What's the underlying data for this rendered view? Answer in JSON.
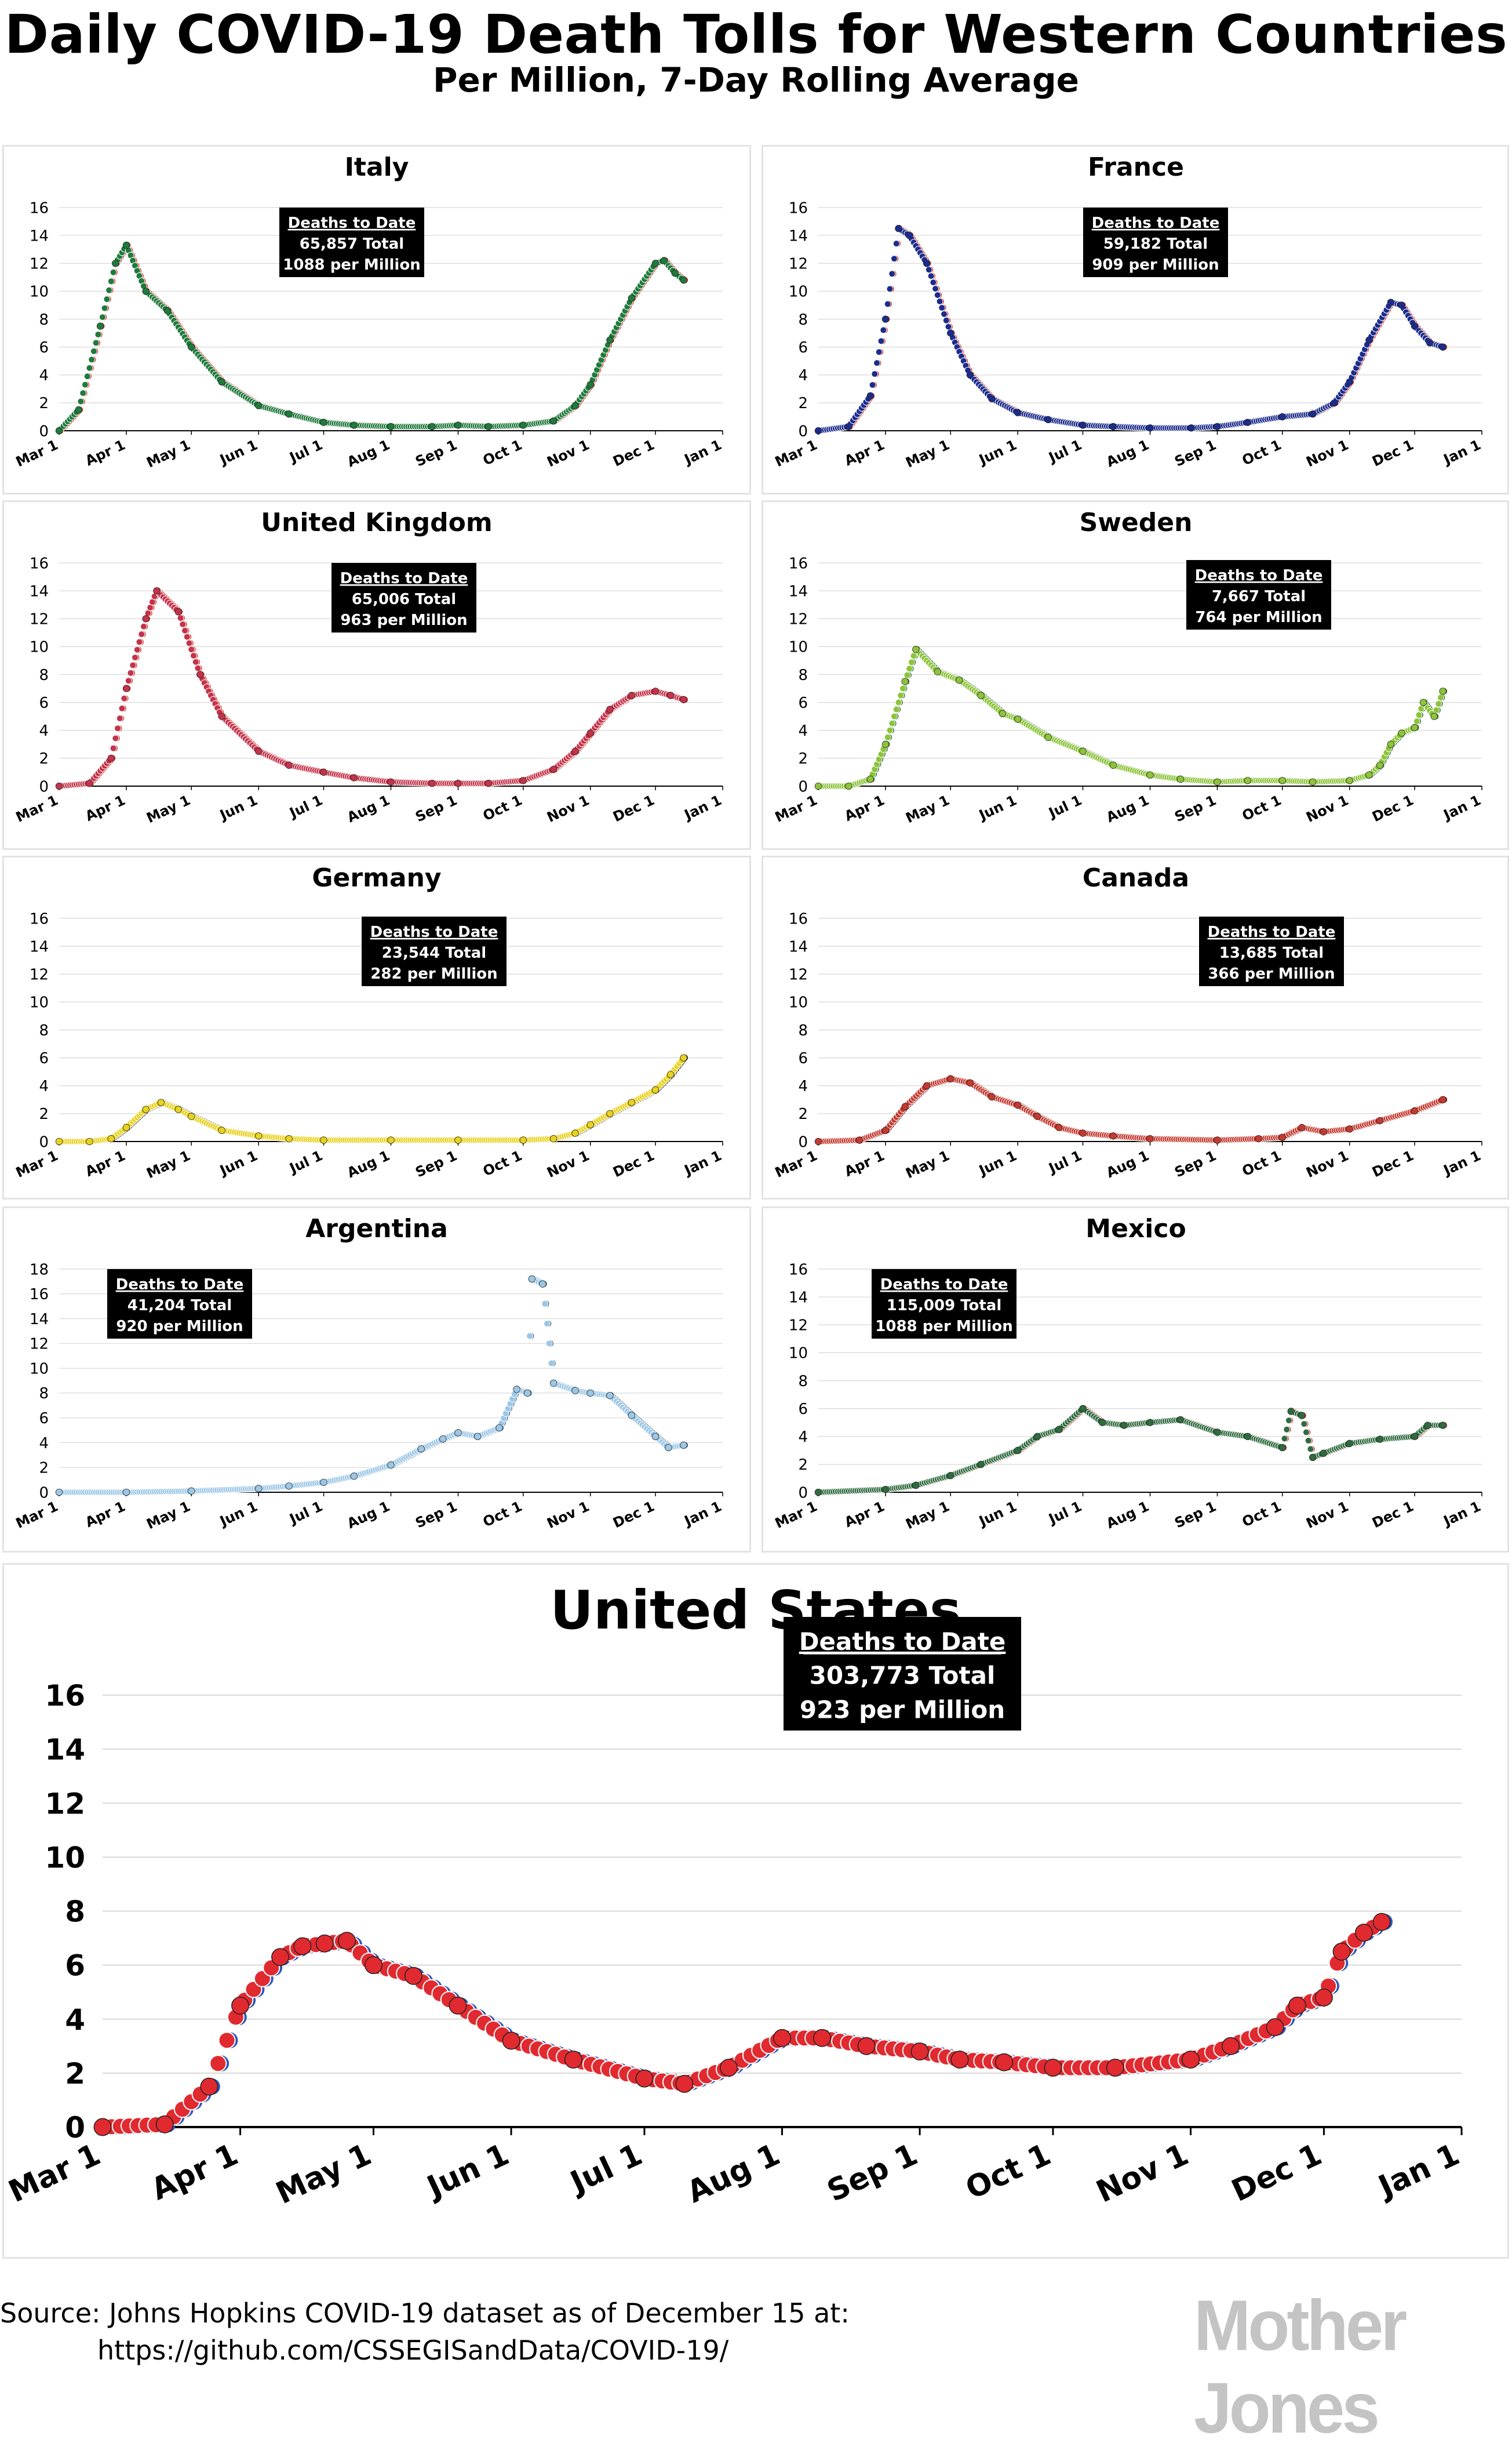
{
  "title": "Daily COVID-19 Death Tolls for Western Countries",
  "subtitle": "Per Million, 7-Day Rolling Average",
  "source": {
    "line1": "Source: Johns Hopkins COVID-19 dataset as of December 15 at:",
    "line2": "https://github.com/CSSEGISandData/COVID-19/"
  },
  "logo": "Mother Jones",
  "month_labels": [
    "Mar 1",
    "Apr 1",
    "May 1",
    "Jun 1",
    "Jul 1",
    "Aug 1",
    "Sep 1",
    "Oct 1",
    "Nov 1",
    "Dec 1",
    "Jan 1"
  ],
  "box_heading": "Deaths to Date",
  "chart_data": [
    {
      "type": "scatter",
      "title": "Italy",
      "x_type": "date",
      "xlim": [
        "Mar 1",
        "Jan 1"
      ],
      "ylim": [
        0,
        16
      ],
      "y_ticks": [
        0,
        2,
        4,
        6,
        8,
        10,
        12,
        14,
        16
      ],
      "grid": true,
      "legend": "none",
      "colors": {
        "primary": "#1f7a3c",
        "secondary": "#d23a30"
      },
      "deaths_box": {
        "heading": "Deaths to Date",
        "total": "65,857 Total",
        "per_million": "1088 per Million"
      },
      "series": [
        {
          "x": [
            "Mar 1",
            "Mar 10",
            "Mar 20",
            "Mar 27",
            "Apr 1",
            "Apr 10",
            "Apr 20",
            "May 1",
            "May 15",
            "Jun 1",
            "Jun 15",
            "Jul 1",
            "Jul 15",
            "Aug 1",
            "Aug 20",
            "Sep 1",
            "Sep 15",
            "Oct 1",
            "Oct 15",
            "Oct 25",
            "Nov 1",
            "Nov 10",
            "Nov 20",
            "Dec 1",
            "Dec 5",
            "Dec 10",
            "Dec 14"
          ],
          "values": [
            0,
            1.5,
            7.5,
            12,
            13.3,
            10,
            8.6,
            6,
            3.5,
            1.8,
            1.2,
            0.6,
            0.4,
            0.3,
            0.3,
            0.4,
            0.3,
            0.4,
            0.7,
            1.8,
            3.3,
            6.5,
            9.5,
            12,
            12.2,
            11.3,
            10.8
          ]
        }
      ]
    },
    {
      "type": "scatter",
      "title": "France",
      "x_type": "date",
      "xlim": [
        "Mar 1",
        "Jan 1"
      ],
      "ylim": [
        0,
        16
      ],
      "y_ticks": [
        0,
        2,
        4,
        6,
        8,
        10,
        12,
        14,
        16
      ],
      "grid": true,
      "legend": "none",
      "colors": {
        "primary": "#1c2c8c",
        "secondary": "#d23a30"
      },
      "deaths_box": {
        "heading": "Deaths to Date",
        "total": "59,182 Total",
        "per_million": "909 per Million"
      },
      "series": [
        {
          "x": [
            "Mar 1",
            "Mar 15",
            "Mar 25",
            "Apr 1",
            "Apr 7",
            "Apr 12",
            "Apr 20",
            "May 1",
            "May 10",
            "May 20",
            "Jun 1",
            "Jun 15",
            "Jul 1",
            "Jul 15",
            "Aug 1",
            "Aug 20",
            "Sep 1",
            "Sep 15",
            "Oct 1",
            "Oct 15",
            "Oct 25",
            "Nov 1",
            "Nov 10",
            "Nov 20",
            "Nov 25",
            "Dec 1",
            "Dec 8",
            "Dec 14"
          ],
          "values": [
            0,
            0.3,
            2.5,
            8,
            14.5,
            14,
            12,
            7,
            4,
            2.3,
            1.3,
            0.8,
            0.4,
            0.3,
            0.2,
            0.2,
            0.3,
            0.6,
            1,
            1.2,
            2,
            3.5,
            6.5,
            9.2,
            9,
            7.5,
            6.3,
            6
          ]
        }
      ]
    },
    {
      "type": "scatter",
      "title": "United Kingdom",
      "x_type": "date",
      "xlim": [
        "Mar 1",
        "Jan 1"
      ],
      "ylim": [
        0,
        16
      ],
      "y_ticks": [
        0,
        2,
        4,
        6,
        8,
        10,
        12,
        14,
        16
      ],
      "grid": true,
      "legend": "none",
      "colors": {
        "primary": "#c4334a",
        "secondary": "#d23a30"
      },
      "deaths_box": {
        "heading": "Deaths to Date",
        "total": "65,006 Total",
        "per_million": "963 per Million"
      },
      "series": [
        {
          "x": [
            "Mar 1",
            "Mar 15",
            "Mar 25",
            "Apr 1",
            "Apr 10",
            "Apr 15",
            "Apr 25",
            "May 5",
            "May 15",
            "Jun 1",
            "Jun 15",
            "Jul 1",
            "Jul 15",
            "Aug 1",
            "Aug 20",
            "Sep 1",
            "Sep 15",
            "Oct 1",
            "Oct 15",
            "Oct 25",
            "Nov 1",
            "Nov 10",
            "Nov 20",
            "Dec 1",
            "Dec 8",
            "Dec 14"
          ],
          "values": [
            0,
            0.2,
            2,
            7,
            12,
            14,
            12.5,
            8,
            5,
            2.5,
            1.5,
            1,
            0.6,
            0.3,
            0.2,
            0.2,
            0.2,
            0.4,
            1.2,
            2.5,
            3.8,
            5.5,
            6.5,
            6.8,
            6.5,
            6.2
          ]
        }
      ]
    },
    {
      "type": "scatter",
      "title": "Sweden",
      "x_type": "date",
      "xlim": [
        "Mar 1",
        "Jan 1"
      ],
      "ylim": [
        0,
        16
      ],
      "y_ticks": [
        0,
        2,
        4,
        6,
        8,
        10,
        12,
        14,
        16
      ],
      "grid": true,
      "legend": "none",
      "colors": {
        "primary": "#8cc43a",
        "secondary": "#2e6b2e"
      },
      "deaths_box": {
        "heading": "Deaths to Date",
        "total": "7,667 Total",
        "per_million": "764 per Million"
      },
      "series": [
        {
          "x": [
            "Mar 1",
            "Mar 15",
            "Mar 25",
            "Apr 1",
            "Apr 10",
            "Apr 15",
            "Apr 25",
            "May 5",
            "May 15",
            "May 25",
            "Jun 1",
            "Jun 15",
            "Jul 1",
            "Jul 15",
            "Aug 1",
            "Aug 15",
            "Sep 1",
            "Sep 15",
            "Oct 1",
            "Oct 15",
            "Nov 1",
            "Nov 10",
            "Nov 15",
            "Nov 20",
            "Nov 25",
            "Dec 1",
            "Dec 5",
            "Dec 10",
            "Dec 14"
          ],
          "values": [
            0,
            0,
            0.5,
            3,
            7.5,
            9.8,
            8.2,
            7.6,
            6.5,
            5.2,
            4.8,
            3.5,
            2.5,
            1.5,
            0.8,
            0.5,
            0.3,
            0.4,
            0.4,
            0.3,
            0.4,
            0.8,
            1.5,
            3,
            3.8,
            4.2,
            6,
            5,
            6.8
          ]
        }
      ]
    },
    {
      "type": "scatter",
      "title": "Germany",
      "x_type": "date",
      "xlim": [
        "Mar 1",
        "Jan 1"
      ],
      "ylim": [
        0,
        16
      ],
      "y_ticks": [
        0,
        2,
        4,
        6,
        8,
        10,
        12,
        14,
        16
      ],
      "grid": true,
      "legend": "none",
      "colors": {
        "primary": "#e8d21f",
        "secondary": "#333333"
      },
      "deaths_box": {
        "heading": "Deaths to Date",
        "total": "23,544 Total",
        "per_million": "282 per Million"
      },
      "series": [
        {
          "x": [
            "Mar 1",
            "Mar 15",
            "Mar 25",
            "Apr 1",
            "Apr 10",
            "Apr 17",
            "Apr 25",
            "May 1",
            "May 15",
            "Jun 1",
            "Jun 15",
            "Jul 1",
            "Aug 1",
            "Sep 1",
            "Oct 1",
            "Oct 15",
            "Oct 25",
            "Nov 1",
            "Nov 10",
            "Nov 20",
            "Dec 1",
            "Dec 8",
            "Dec 14"
          ],
          "values": [
            0,
            0,
            0.2,
            1,
            2.3,
            2.8,
            2.3,
            1.8,
            0.8,
            0.4,
            0.2,
            0.1,
            0.1,
            0.1,
            0.1,
            0.2,
            0.6,
            1.2,
            2,
            2.8,
            3.7,
            4.8,
            6
          ]
        }
      ]
    },
    {
      "type": "scatter",
      "title": "Canada",
      "x_type": "date",
      "xlim": [
        "Mar 1",
        "Jan 1"
      ],
      "ylim": [
        0,
        16
      ],
      "y_ticks": [
        0,
        2,
        4,
        6,
        8,
        10,
        12,
        14,
        16
      ],
      "grid": true,
      "legend": "none",
      "colors": {
        "primary": "#c43a30",
        "secondary": "#7a1f1a"
      },
      "deaths_box": {
        "heading": "Deaths to Date",
        "total": "13,685 Total",
        "per_million": "366 per Million"
      },
      "series": [
        {
          "x": [
            "Mar 1",
            "Mar 20",
            "Apr 1",
            "Apr 10",
            "Apr 20",
            "May 1",
            "May 10",
            "May 20",
            "Jun 1",
            "Jun 10",
            "Jun 20",
            "Jul 1",
            "Jul 15",
            "Aug 1",
            "Sep 1",
            "Sep 20",
            "Oct 1",
            "Oct 10",
            "Oct 20",
            "Nov 1",
            "Nov 15",
            "Dec 1",
            "Dec 14"
          ],
          "values": [
            0,
            0.1,
            0.8,
            2.5,
            4,
            4.5,
            4.2,
            3.2,
            2.6,
            1.8,
            1,
            0.6,
            0.4,
            0.2,
            0.1,
            0.2,
            0.3,
            1,
            0.7,
            0.9,
            1.5,
            2.2,
            3
          ]
        }
      ]
    },
    {
      "type": "scatter",
      "title": "Argentina",
      "x_type": "date",
      "xlim": [
        "Mar 1",
        "Jan 1"
      ],
      "ylim": [
        0,
        18
      ],
      "y_ticks": [
        0,
        2,
        4,
        6,
        8,
        10,
        12,
        14,
        16,
        18
      ],
      "grid": true,
      "legend": "none",
      "colors": {
        "primary": "#9cc7e6",
        "secondary": "#4a6e8c"
      },
      "deaths_box": {
        "heading": "Deaths to Date",
        "total": "41,204 Total",
        "per_million": "920 per Million"
      },
      "series": [
        {
          "x": [
            "Mar 1",
            "Apr 1",
            "May 1",
            "Jun 1",
            "Jun 15",
            "Jul 1",
            "Jul 15",
            "Aug 1",
            "Aug 15",
            "Aug 25",
            "Sep 1",
            "Sep 10",
            "Sep 20",
            "Sep 28",
            "Oct 3",
            "Oct 5",
            "Oct 10",
            "Oct 15",
            "Oct 25",
            "Nov 1",
            "Nov 10",
            "Nov 20",
            "Dec 1",
            "Dec 7",
            "Dec 14"
          ],
          "values": [
            0,
            0,
            0.1,
            0.3,
            0.5,
            0.8,
            1.3,
            2.2,
            3.5,
            4.3,
            4.8,
            4.5,
            5.2,
            8.3,
            8,
            17.2,
            16.8,
            8.8,
            8.2,
            8,
            7.8,
            6.2,
            4.5,
            3.6,
            3.8
          ]
        }
      ]
    },
    {
      "type": "scatter",
      "title": "Mexico",
      "x_type": "date",
      "xlim": [
        "Mar 1",
        "Jan 1"
      ],
      "ylim": [
        0,
        16
      ],
      "y_ticks": [
        0,
        2,
        4,
        6,
        8,
        10,
        12,
        14,
        16
      ],
      "grid": true,
      "legend": "none",
      "colors": {
        "primary": "#2e6b3e",
        "secondary": "#d23a30"
      },
      "deaths_box": {
        "heading": "Deaths to Date",
        "total": "115,009 Total",
        "per_million": "1088 per Million"
      },
      "series": [
        {
          "x": [
            "Mar 1",
            "Apr 1",
            "Apr 15",
            "May 1",
            "May 15",
            "Jun 1",
            "Jun 10",
            "Jun 20",
            "Jul 1",
            "Jul 10",
            "Jul 20",
            "Aug 1",
            "Aug 15",
            "Sep 1",
            "Sep 15",
            "Oct 1",
            "Oct 5",
            "Oct 10",
            "Oct 15",
            "Oct 20",
            "Nov 1",
            "Nov 15",
            "Dec 1",
            "Dec 7",
            "Dec 14"
          ],
          "values": [
            0,
            0.2,
            0.5,
            1.2,
            2,
            3,
            4,
            4.5,
            6,
            5,
            4.8,
            5,
            5.2,
            4.3,
            4,
            3.2,
            5.8,
            5.5,
            2.5,
            2.8,
            3.5,
            3.8,
            4,
            4.8,
            4.8
          ]
        }
      ]
    },
    {
      "type": "scatter",
      "title": "United States",
      "x_type": "date",
      "xlim": [
        "Mar 1",
        "Jan 1"
      ],
      "ylim": [
        0,
        16
      ],
      "y_ticks": [
        0,
        2,
        4,
        6,
        8,
        10,
        12,
        14,
        16
      ],
      "grid": true,
      "legend": "none",
      "colors": {
        "primary": "#e02a30",
        "secondary": "#2b57b8"
      },
      "deaths_box": {
        "heading": "Deaths to Date",
        "total": "303,773 Total",
        "per_million": "923 per Million"
      },
      "series": [
        {
          "x": [
            "Mar 1",
            "Mar 15",
            "Mar 25",
            "Apr 1",
            "Apr 10",
            "Apr 15",
            "Apr 20",
            "Apr 25",
            "May 1",
            "May 10",
            "May 20",
            "Jun 1",
            "Jun 15",
            "Jul 1",
            "Jul 10",
            "Jul 20",
            "Aug 1",
            "Aug 10",
            "Aug 20",
            "Sep 1",
            "Sep 10",
            "Sep 20",
            "Oct 1",
            "Oct 15",
            "Nov 1",
            "Nov 10",
            "Nov 20",
            "Nov 25",
            "Dec 1",
            "Dec 5",
            "Dec 10",
            "Dec 14"
          ],
          "values": [
            0,
            0.1,
            1.5,
            4.5,
            6.3,
            6.7,
            6.8,
            6.9,
            6,
            5.6,
            4.5,
            3.2,
            2.5,
            1.8,
            1.6,
            2.2,
            3.3,
            3.3,
            3,
            2.8,
            2.5,
            2.4,
            2.2,
            2.2,
            2.5,
            3,
            3.7,
            4.5,
            4.8,
            6.5,
            7.2,
            7.6
          ]
        }
      ]
    }
  ]
}
